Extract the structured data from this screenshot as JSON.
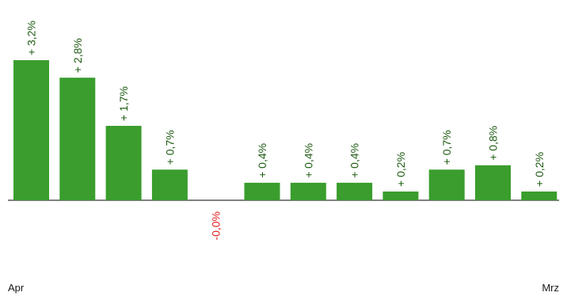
{
  "chart_data": {
    "type": "bar",
    "categories": [
      "Apr",
      "",
      "",
      "",
      "",
      "",
      "",
      "",
      "",
      "",
      "",
      "Mrz"
    ],
    "values": [
      3.2,
      2.8,
      1.7,
      0.7,
      -0.0,
      0.4,
      0.4,
      0.4,
      0.2,
      0.7,
      0.8,
      0.2
    ],
    "data_labels": [
      "+ 3,2%",
      "+ 2,8%",
      "+ 1,7%",
      "+ 0,7%",
      "-0,0%",
      "+ 0,4%",
      "+ 0,4%",
      "+ 0,4%",
      "+ 0,2%",
      "+ 0,7%",
      "+ 0,8%",
      "+ 0,2%"
    ],
    "x_start_label": "Apr",
    "x_end_label": "Mrz",
    "title": "",
    "xlabel": "",
    "ylabel": "",
    "grid": false,
    "legend": "none",
    "colors": {
      "bar": "#3a9d2d",
      "positive_label": "#1e5b12",
      "negative_label": "#e02020",
      "axis": "#808080"
    }
  }
}
